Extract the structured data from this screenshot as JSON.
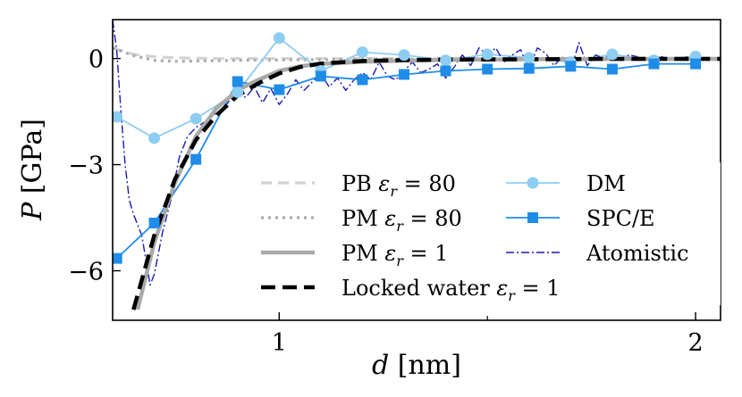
{
  "chart_data": {
    "type": "line",
    "title": "",
    "xlabel": "d [nm]",
    "ylabel": "P [GPa]",
    "xlim": [
      0.6,
      2.06
    ],
    "ylim": [
      -7.4,
      1.1
    ],
    "x_ticks": [
      {
        "value": 1,
        "label": "1"
      },
      {
        "value": 2,
        "label": "2"
      }
    ],
    "x_minor_ticks": [
      1.5
    ],
    "y_ticks": [
      {
        "value": 0,
        "label": "0"
      },
      {
        "value": -3,
        "label": "−3"
      },
      {
        "value": -6,
        "label": "−6"
      }
    ],
    "grid": false,
    "legend_position": "lower-center",
    "series": [
      {
        "name": "PB",
        "legend_text": "PB εr = 80",
        "style": "dashed-light",
        "color": "#d3d3d3",
        "x": [
          0.6,
          0.65,
          0.7,
          0.75,
          0.8,
          0.85,
          0.9,
          1.0,
          1.1,
          1.2,
          1.4,
          1.6,
          1.8,
          2.06
        ],
        "y": [
          0.3,
          0.12,
          0.05,
          0.02,
          0.01,
          0.0,
          0.0,
          0.0,
          0.0,
          0.0,
          0.0,
          0.0,
          0.0,
          0.0
        ]
      },
      {
        "name": "PM80",
        "legend_text": "PM εr = 80",
        "style": "dotted",
        "color": "#aaaaaa",
        "x": [
          0.6,
          0.65,
          0.7,
          0.75,
          0.8,
          0.85,
          0.9,
          1.0,
          1.1,
          1.2,
          1.4,
          1.6,
          1.8,
          2.06
        ],
        "y": [
          0.3,
          0.08,
          -0.05,
          -0.08,
          -0.07,
          -0.06,
          -0.05,
          -0.04,
          -0.03,
          -0.02,
          -0.02,
          -0.01,
          -0.01,
          -0.01
        ]
      },
      {
        "name": "PM1",
        "legend_text": "PM εr = 1",
        "style": "solid-thick",
        "color": "#a9a9a9",
        "x": [
          0.66,
          0.7,
          0.75,
          0.8,
          0.85,
          0.9,
          0.95,
          1.0,
          1.05,
          1.1,
          1.2,
          1.3,
          1.4,
          1.6,
          1.8,
          2.06
        ],
        "y": [
          -7.1,
          -5.2,
          -3.5,
          -2.2,
          -1.4,
          -0.9,
          -0.6,
          -0.35,
          -0.22,
          -0.15,
          -0.09,
          -0.06,
          -0.04,
          -0.02,
          -0.01,
          -0.01
        ]
      },
      {
        "name": "Locked",
        "legend_text": "Locked water εr = 1",
        "style": "dashed-black",
        "color": "#000000",
        "x": [
          0.65,
          0.7,
          0.75,
          0.8,
          0.85,
          0.9,
          0.95,
          1.0,
          1.05,
          1.1,
          1.2,
          1.3,
          1.4,
          1.6,
          1.8,
          2.06
        ],
        "y": [
          -7.1,
          -5.0,
          -3.4,
          -2.3,
          -1.6,
          -1.05,
          -0.7,
          -0.42,
          -0.24,
          -0.14,
          -0.07,
          -0.04,
          -0.03,
          -0.02,
          -0.01,
          -0.01
        ]
      },
      {
        "name": "DM",
        "legend_text": "DM",
        "style": "line-circle",
        "color": "#8ecdf2",
        "x": [
          0.61,
          0.7,
          0.8,
          0.9,
          1.0,
          1.1,
          1.2,
          1.3,
          1.4,
          1.5,
          1.6,
          1.7,
          1.8,
          1.9,
          2.0
        ],
        "y": [
          -1.65,
          -2.25,
          -1.7,
          -0.95,
          0.58,
          -0.35,
          0.18,
          0.1,
          -0.05,
          0.12,
          0.02,
          -0.1,
          0.12,
          -0.05,
          0.06
        ]
      },
      {
        "name": "SPC/E",
        "legend_text": "SPC/E",
        "style": "line-square",
        "color": "#1f8de8",
        "x": [
          0.61,
          0.7,
          0.8,
          0.9,
          1.0,
          1.1,
          1.2,
          1.3,
          1.4,
          1.5,
          1.6,
          1.7,
          1.8,
          1.9,
          2.0
        ],
        "y": [
          -5.65,
          -4.65,
          -2.85,
          -0.65,
          -0.88,
          -0.5,
          -0.6,
          -0.45,
          -0.35,
          -0.3,
          -0.28,
          -0.22,
          -0.3,
          -0.15,
          -0.15
        ]
      },
      {
        "name": "Atomistic",
        "legend_text": "Atomistic",
        "style": "dashdot",
        "color": "#1a1ab0",
        "x": [
          0.6,
          0.61,
          0.62,
          0.63,
          0.64,
          0.65,
          0.67,
          0.69,
          0.7,
          0.72,
          0.74,
          0.76,
          0.78,
          0.8,
          0.82,
          0.84,
          0.86,
          0.88,
          0.9,
          0.92,
          0.94,
          0.96,
          0.98,
          1.0,
          1.02,
          1.04,
          1.06,
          1.08,
          1.1,
          1.12,
          1.14,
          1.16,
          1.18,
          1.2,
          1.22,
          1.24,
          1.26,
          1.28,
          1.3,
          1.32,
          1.34,
          1.36,
          1.38,
          1.4,
          1.42,
          1.44,
          1.46,
          1.48,
          1.5,
          1.52,
          1.54,
          1.56,
          1.58,
          1.6,
          1.62,
          1.64,
          1.66,
          1.68,
          1.7,
          1.72,
          1.74,
          1.76,
          1.78,
          1.8,
          1.82,
          1.84,
          1.86,
          1.88,
          1.9,
          1.92,
          1.94,
          1.96,
          1.98,
          2.0,
          2.02,
          2.04,
          2.06
        ],
        "y": [
          1.1,
          0.2,
          -1.5,
          -3.0,
          -4.0,
          -4.4,
          -5.0,
          -6.4,
          -6.1,
          -4.9,
          -4.0,
          -2.8,
          -2.2,
          -1.95,
          -1.8,
          -1.6,
          -1.5,
          -1.2,
          -1.0,
          -1.1,
          -0.8,
          -1.25,
          -0.85,
          -1.3,
          -1.0,
          -0.6,
          -0.9,
          -0.65,
          -0.45,
          -0.8,
          -0.55,
          -0.9,
          -0.6,
          -0.4,
          -0.6,
          -0.1,
          -0.5,
          -0.6,
          -0.35,
          -0.1,
          -0.4,
          -0.3,
          -0.15,
          -0.55,
          -0.25,
          0.1,
          -0.2,
          0.3,
          0.1,
          0.3,
          -0.1,
          0.1,
          0.25,
          -0.3,
          0.3,
          0.15,
          -0.2,
          0.05,
          -0.35,
          0.45,
          -0.2,
          0.1,
          0.0,
          0.15,
          -0.05,
          0.1,
          0.05,
          -0.05,
          0.0,
          0.05,
          -0.05,
          0.0,
          0.05,
          0.0,
          -0.05,
          0.0,
          0.0
        ]
      }
    ]
  }
}
